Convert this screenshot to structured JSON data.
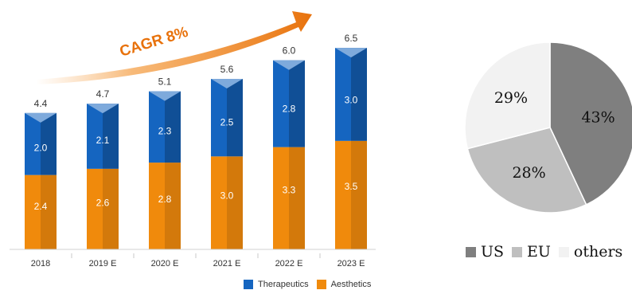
{
  "chart_data": [
    {
      "type": "bar",
      "stacked": true,
      "categories": [
        "2018",
        "2019 E",
        "2020 E",
        "2021 E",
        "2022 E",
        "2023 E"
      ],
      "series": [
        {
          "name": "Aesthetics",
          "values": [
            "2.4",
            "2.6",
            "2.8",
            "3.0",
            "3.3",
            "3.5"
          ],
          "color": "#f08a0c"
        },
        {
          "name": "Therapeutics",
          "values": [
            "2.0",
            "2.1",
            "2.3",
            "2.5",
            "2.8",
            "3.0"
          ],
          "color": "#1565c0"
        }
      ],
      "totals": [
        "4.4",
        "4.7",
        "5.1",
        "5.6",
        "6.0",
        "6.5"
      ],
      "annotation": "CAGR 8%",
      "ylim": [
        0,
        7
      ],
      "legend_position": "bottom-right"
    },
    {
      "type": "pie",
      "labels": [
        "US",
        "EU",
        "others"
      ],
      "values": [
        43,
        28,
        29
      ],
      "value_labels": [
        "43%",
        "28%",
        "29%"
      ],
      "colors": [
        "#7f7f7f",
        "#bfbfbf",
        "#f2f2f2"
      ],
      "legend_position": "bottom"
    }
  ]
}
